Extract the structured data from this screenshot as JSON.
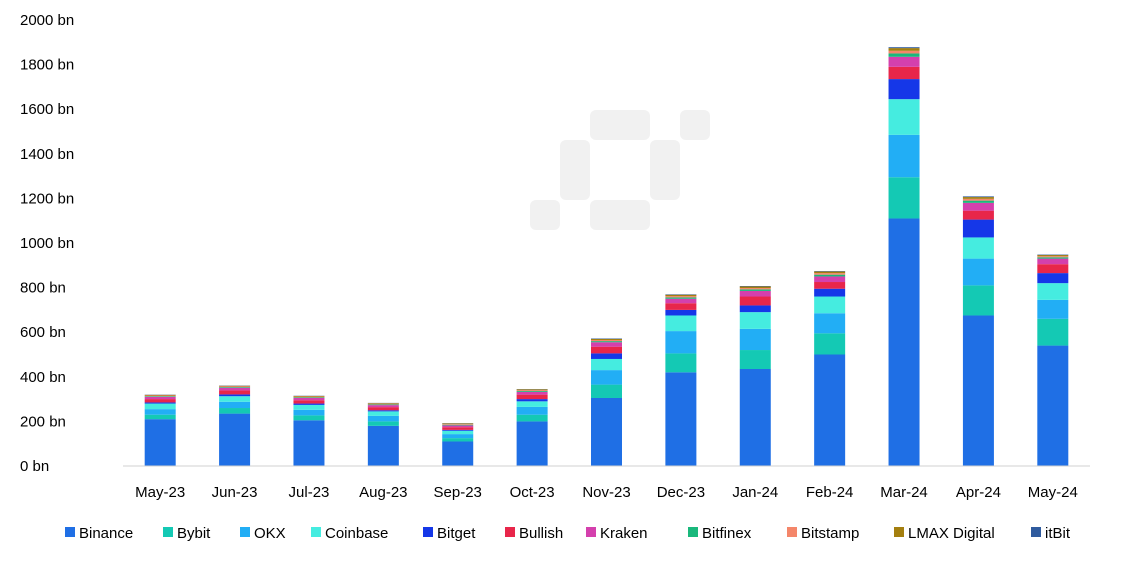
{
  "chart_data": {
    "type": "bar",
    "stacked": true,
    "categories": [
      "May-23",
      "Jun-23",
      "Jul-23",
      "Aug-23",
      "Sep-23",
      "Oct-23",
      "Nov-23",
      "Dec-23",
      "Jan-24",
      "Feb-24",
      "Mar-24",
      "Apr-24",
      "May-24"
    ],
    "ylim": [
      0,
      2000
    ],
    "yticks": [
      "0 bn",
      "200 bn",
      "400 bn",
      "600 bn",
      "800 bn",
      "1000 bn",
      "1200 bn",
      "1400 bn",
      "1600 bn",
      "1800 bn",
      "2000 bn"
    ],
    "ytick_values": [
      0,
      200,
      400,
      600,
      800,
      1000,
      1200,
      1400,
      1600,
      1800,
      2000
    ],
    "grid": false,
    "legend_position": "bottom",
    "series": [
      {
        "name": "Binance",
        "color": "#1f6fe5",
        "values": [
          210,
          235,
          205,
          180,
          110,
          200,
          305,
          420,
          435,
          500,
          1110,
          675,
          540
        ]
      },
      {
        "name": "Bybit",
        "color": "#14c9b4",
        "values": [
          20,
          25,
          22,
          20,
          15,
          30,
          60,
          85,
          85,
          95,
          185,
          135,
          120
        ]
      },
      {
        "name": "OKX",
        "color": "#22aef5",
        "values": [
          25,
          28,
          25,
          25,
          18,
          35,
          65,
          100,
          95,
          90,
          190,
          120,
          85
        ]
      },
      {
        "name": "Coinbase",
        "color": "#45ece0",
        "values": [
          25,
          25,
          22,
          20,
          15,
          25,
          50,
          70,
          75,
          75,
          160,
          95,
          75
        ]
      },
      {
        "name": "Bitget",
        "color": "#1537e8",
        "values": [
          5,
          8,
          6,
          5,
          4,
          10,
          25,
          25,
          30,
          35,
          90,
          80,
          45
        ]
      },
      {
        "name": "Bullish",
        "color": "#e8264a",
        "values": [
          15,
          18,
          15,
          14,
          12,
          20,
          30,
          30,
          40,
          30,
          55,
          40,
          40
        ]
      },
      {
        "name": "Kraken",
        "color": "#d440ad",
        "values": [
          10,
          12,
          10,
          9,
          8,
          12,
          20,
          20,
          25,
          25,
          45,
          35,
          25
        ]
      },
      {
        "name": "Bitfinex",
        "color": "#1ab87c",
        "values": [
          3,
          3,
          3,
          3,
          3,
          4,
          5,
          6,
          7,
          8,
          15,
          10,
          6
        ]
      },
      {
        "name": "Bitstamp",
        "color": "#f4866a",
        "values": [
          3,
          3,
          3,
          3,
          3,
          4,
          5,
          6,
          6,
          7,
          12,
          8,
          5
        ]
      },
      {
        "name": "LMAX Digital",
        "color": "#a47f0f",
        "values": [
          3,
          3,
          3,
          3,
          3,
          4,
          5,
          6,
          7,
          7,
          12,
          8,
          5
        ]
      },
      {
        "name": "itBit",
        "color": "#2f5b9e",
        "values": [
          1,
          1,
          1,
          1,
          1,
          1,
          2,
          2,
          2,
          2,
          4,
          3,
          2
        ]
      }
    ]
  }
}
